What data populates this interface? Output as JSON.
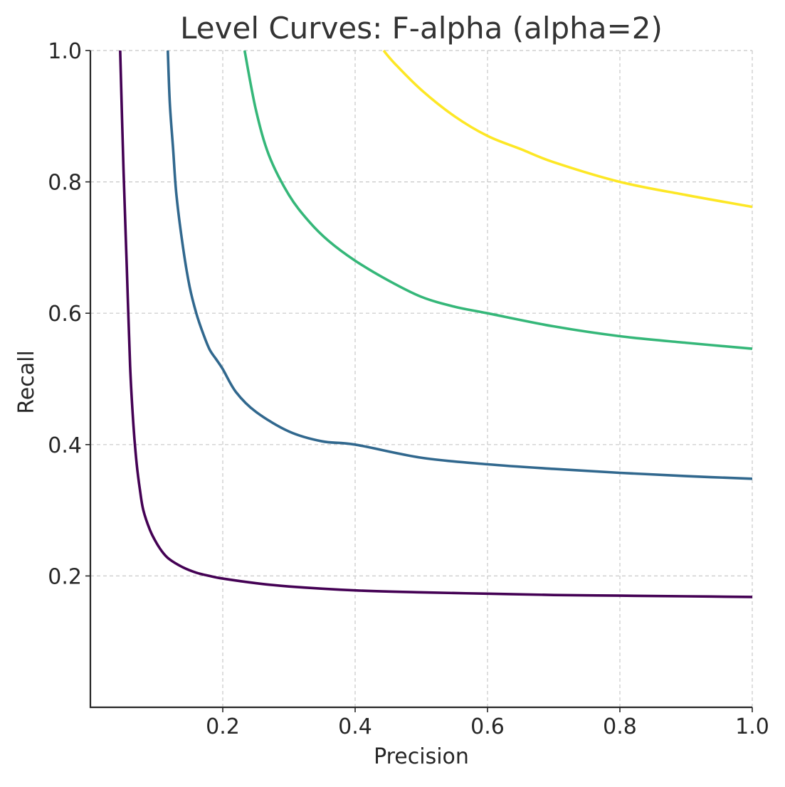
{
  "chart_data": {
    "type": "line",
    "title": "Level Curves: F-alpha (alpha=2)",
    "xlabel": "Precision",
    "ylabel": "Recall",
    "xlim": [
      0,
      1.0
    ],
    "ylim": [
      0,
      1.0
    ],
    "x_ticks": [
      0.2,
      0.4,
      0.6,
      0.8,
      1.0
    ],
    "x_tick_labels": [
      "0.2",
      "0.4",
      "0.6",
      "0.8",
      "1.0"
    ],
    "y_ticks": [
      0.2,
      0.4,
      0.6,
      0.8,
      1.0
    ],
    "y_tick_labels": [
      "0.2",
      "0.4",
      "0.6",
      "0.8",
      "1.0"
    ],
    "grid": true,
    "legend": "none",
    "series": [
      {
        "color": "#440154",
        "x": [
          0.045,
          0.05,
          0.055,
          0.06,
          0.065,
          0.07,
          0.075,
          0.08,
          0.09,
          0.1,
          0.11,
          0.12,
          0.14,
          0.16,
          0.18,
          0.2,
          0.25,
          0.3,
          0.4,
          0.5,
          0.6,
          0.7,
          0.8,
          0.9,
          1.0
        ],
        "y": [
          1.0,
          0.82,
          0.67,
          0.52,
          0.43,
          0.37,
          0.33,
          0.3,
          0.27,
          0.25,
          0.235,
          0.225,
          0.213,
          0.205,
          0.2,
          0.196,
          0.189,
          0.184,
          0.178,
          0.175,
          0.173,
          0.171,
          0.17,
          0.169,
          0.168
        ]
      },
      {
        "color": "#31688e",
        "x": [
          0.117,
          0.12,
          0.125,
          0.13,
          0.14,
          0.15,
          0.16,
          0.17,
          0.18,
          0.19,
          0.2,
          0.22,
          0.25,
          0.3,
          0.35,
          0.4,
          0.5,
          0.6,
          0.7,
          0.8,
          0.9,
          1.0
        ],
        "y": [
          1.0,
          0.92,
          0.85,
          0.78,
          0.7,
          0.64,
          0.6,
          0.57,
          0.545,
          0.53,
          0.515,
          0.48,
          0.45,
          0.42,
          0.405,
          0.4,
          0.38,
          0.37,
          0.363,
          0.357,
          0.352,
          0.348
        ]
      },
      {
        "color": "#35b779",
        "x": [
          0.233,
          0.25,
          0.27,
          0.3,
          0.33,
          0.36,
          0.4,
          0.45,
          0.5,
          0.55,
          0.6,
          0.7,
          0.8,
          0.9,
          1.0
        ],
        "y": [
          1.0,
          0.91,
          0.84,
          0.78,
          0.74,
          0.71,
          0.68,
          0.65,
          0.625,
          0.61,
          0.6,
          0.58,
          0.565,
          0.555,
          0.546
        ]
      },
      {
        "color": "#fde725",
        "x": [
          0.443,
          0.46,
          0.5,
          0.55,
          0.6,
          0.65,
          0.7,
          0.8,
          0.9,
          1.0
        ],
        "y": [
          1.0,
          0.98,
          0.94,
          0.9,
          0.87,
          0.85,
          0.83,
          0.8,
          0.78,
          0.762
        ]
      }
    ]
  }
}
